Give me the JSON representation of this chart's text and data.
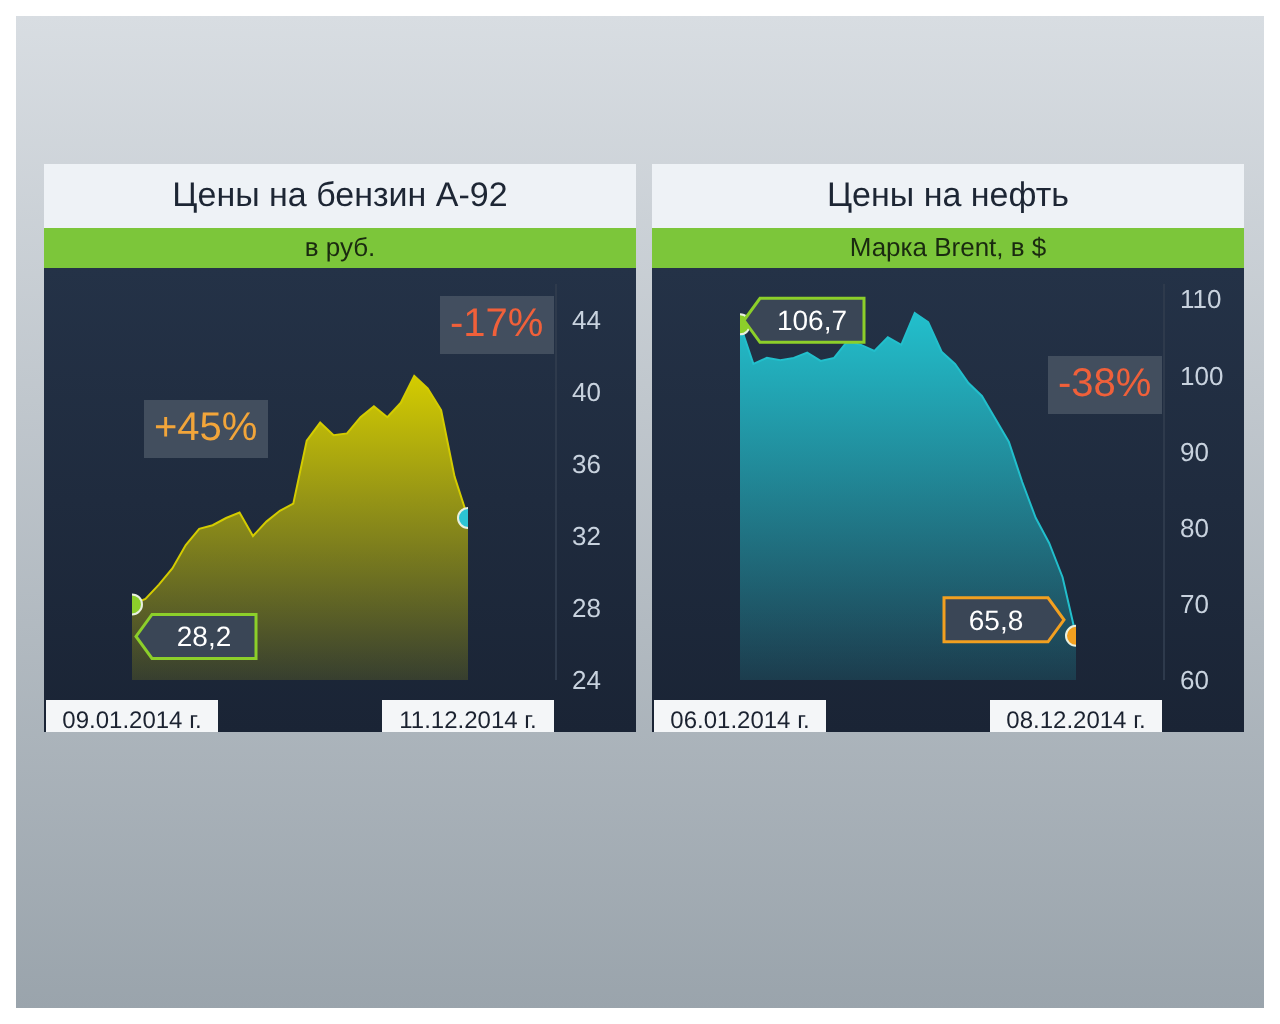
{
  "chart_data": [
    {
      "type": "area",
      "title": "Цены на бензин А-92",
      "subtitle": "в руб.",
      "categories": [
        "09.01.2014 г.",
        null,
        null,
        null,
        null,
        null,
        null,
        null,
        null,
        null,
        null,
        null,
        null,
        null,
        null,
        null,
        null,
        null,
        null,
        null,
        null,
        null,
        null,
        null,
        null,
        "11.12.2014 г."
      ],
      "series": [
        {
          "color": "#d4cc00",
          "values": [
            28.2,
            28.5,
            29.3,
            30.2,
            31.5,
            32.4,
            32.6,
            33.0,
            33.3,
            32.0,
            32.8,
            33.4,
            33.8,
            37.3,
            38.3,
            37.6,
            37.7,
            38.6,
            39.2,
            38.6,
            39.4,
            40.9,
            40.2,
            39.0,
            35.3,
            33.0
          ],
          "value_labels": [
            "28,2",
            null,
            null,
            null,
            null,
            null,
            null,
            null,
            null,
            null,
            null,
            null,
            null,
            null,
            null,
            null,
            null,
            null,
            null,
            null,
            null,
            null,
            null,
            null,
            null,
            null
          ]
        }
      ],
      "ylim": [
        24,
        46
      ],
      "yticks": [
        24,
        28,
        32,
        36,
        40,
        44
      ],
      "annotations": [
        "+45%",
        "-17%"
      ]
    },
    {
      "type": "area",
      "title": "Цены на нефть",
      "subtitle": "Марка Brent, в $",
      "categories": [
        "06.01.2014 г.",
        null,
        null,
        null,
        null,
        null,
        null,
        null,
        null,
        null,
        null,
        null,
        null,
        null,
        null,
        null,
        null,
        null,
        null,
        null,
        null,
        null,
        null,
        null,
        null,
        "08.12.2014 г."
      ],
      "series": [
        {
          "color": "#22bfcc",
          "values": [
            106.7,
            101.5,
            102.3,
            102.0,
            102.3,
            103.0,
            101.9,
            102.3,
            104.5,
            104.0,
            103.2,
            105.0,
            104.0,
            108.2,
            107.0,
            103.1,
            101.5,
            99.0,
            97.3,
            94.3,
            91.3,
            86.0,
            81.3,
            78.0,
            73.5,
            65.8
          ],
          "value_labels": [
            "106,7",
            null,
            null,
            null,
            null,
            null,
            null,
            null,
            null,
            null,
            null,
            null,
            null,
            null,
            null,
            null,
            null,
            null,
            null,
            null,
            null,
            null,
            null,
            null,
            null,
            "65,8"
          ]
        }
      ],
      "ylim": [
        60,
        112
      ],
      "yticks": [
        60,
        70,
        80,
        90,
        100,
        110
      ],
      "annotations": [
        "-38%"
      ]
    }
  ]
}
